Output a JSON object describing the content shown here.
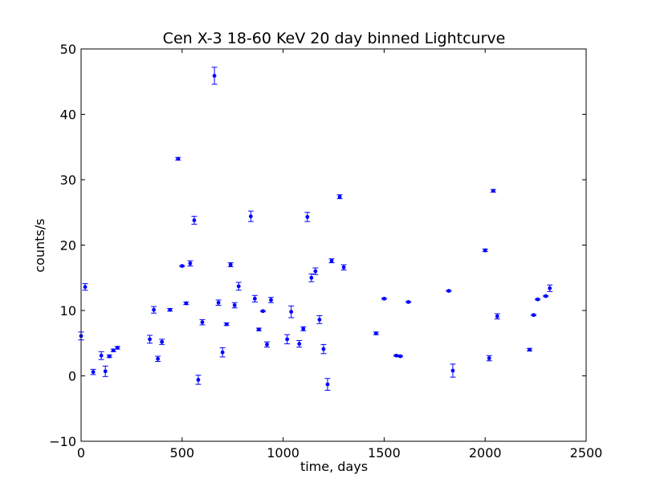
{
  "chart_data": {
    "type": "scatter",
    "title": "Cen X-3 18-60 KeV 20 day binned Lightcurve",
    "xlabel": "time, days",
    "ylabel": "counts/s",
    "xlim": [
      0,
      2500
    ],
    "ylim": [
      -10,
      50
    ],
    "xticks": [
      0,
      500,
      1000,
      1500,
      2000,
      2500
    ],
    "yticks": [
      -10,
      0,
      10,
      20,
      30,
      40,
      50
    ],
    "xtick_labels": [
      "0",
      "500",
      "1000",
      "1500",
      "2000",
      "2500"
    ],
    "ytick_labels": [
      "−10",
      "0",
      "10",
      "20",
      "30",
      "40",
      "50"
    ],
    "grid": false,
    "marker_color": "#0000ff",
    "points": [
      {
        "x": 0,
        "y": 6.1,
        "err": 0.6
      },
      {
        "x": 20,
        "y": 13.6,
        "err": 0.5
      },
      {
        "x": 60,
        "y": 0.6,
        "err": 0.4
      },
      {
        "x": 100,
        "y": 3.1,
        "err": 0.6
      },
      {
        "x": 120,
        "y": 0.7,
        "err": 0.8
      },
      {
        "x": 140,
        "y": 3.0,
        "err": 0.2
      },
      {
        "x": 160,
        "y": 3.9,
        "err": 0.2
      },
      {
        "x": 180,
        "y": 4.3,
        "err": 0.2
      },
      {
        "x": 340,
        "y": 5.6,
        "err": 0.6
      },
      {
        "x": 360,
        "y": 10.1,
        "err": 0.5
      },
      {
        "x": 380,
        "y": 2.6,
        "err": 0.4
      },
      {
        "x": 400,
        "y": 5.2,
        "err": 0.4
      },
      {
        "x": 440,
        "y": 10.1,
        "err": 0.2
      },
      {
        "x": 480,
        "y": 33.2,
        "err": 0.2
      },
      {
        "x": 500,
        "y": 16.8,
        "err": 0.1
      },
      {
        "x": 520,
        "y": 11.1,
        "err": 0.2
      },
      {
        "x": 540,
        "y": 17.2,
        "err": 0.4
      },
      {
        "x": 560,
        "y": 23.8,
        "err": 0.6
      },
      {
        "x": 580,
        "y": -0.6,
        "err": 0.7
      },
      {
        "x": 600,
        "y": 8.2,
        "err": 0.4
      },
      {
        "x": 660,
        "y": 45.9,
        "err": 1.3
      },
      {
        "x": 680,
        "y": 11.2,
        "err": 0.4
      },
      {
        "x": 700,
        "y": 3.6,
        "err": 0.7
      },
      {
        "x": 720,
        "y": 7.9,
        "err": 0.2
      },
      {
        "x": 740,
        "y": 17.0,
        "err": 0.3
      },
      {
        "x": 760,
        "y": 10.8,
        "err": 0.4
      },
      {
        "x": 780,
        "y": 13.7,
        "err": 0.6
      },
      {
        "x": 860,
        "y": 11.8,
        "err": 0.5
      },
      {
        "x": 840,
        "y": 24.4,
        "err": 0.8
      },
      {
        "x": 880,
        "y": 7.1,
        "err": 0.2
      },
      {
        "x": 900,
        "y": 9.9,
        "err": 0.1
      },
      {
        "x": 920,
        "y": 4.8,
        "err": 0.4
      },
      {
        "x": 940,
        "y": 11.6,
        "err": 0.4
      },
      {
        "x": 1020,
        "y": 5.6,
        "err": 0.7
      },
      {
        "x": 1040,
        "y": 9.8,
        "err": 0.9
      },
      {
        "x": 1080,
        "y": 4.9,
        "err": 0.5
      },
      {
        "x": 1100,
        "y": 7.2,
        "err": 0.3
      },
      {
        "x": 1120,
        "y": 24.3,
        "err": 0.7
      },
      {
        "x": 1140,
        "y": 15.0,
        "err": 0.6
      },
      {
        "x": 1160,
        "y": 16.0,
        "err": 0.5
      },
      {
        "x": 1180,
        "y": 8.6,
        "err": 0.6
      },
      {
        "x": 1200,
        "y": 4.1,
        "err": 0.7
      },
      {
        "x": 1220,
        "y": -1.3,
        "err": 0.9
      },
      {
        "x": 1240,
        "y": 17.6,
        "err": 0.3
      },
      {
        "x": 1280,
        "y": 27.4,
        "err": 0.3
      },
      {
        "x": 1300,
        "y": 16.6,
        "err": 0.4
      },
      {
        "x": 1460,
        "y": 6.5,
        "err": 0.2
      },
      {
        "x": 1500,
        "y": 11.8,
        "err": 0.1
      },
      {
        "x": 1560,
        "y": 3.1,
        "err": 0.1
      },
      {
        "x": 1580,
        "y": 3.0,
        "err": 0.1
      },
      {
        "x": 1620,
        "y": 11.3,
        "err": 0.1
      },
      {
        "x": 1820,
        "y": 13.0,
        "err": 0.1
      },
      {
        "x": 1840,
        "y": 0.8,
        "err": 1.0
      },
      {
        "x": 2000,
        "y": 19.2,
        "err": 0.2
      },
      {
        "x": 2020,
        "y": 2.7,
        "err": 0.4
      },
      {
        "x": 2040,
        "y": 28.3,
        "err": 0.2
      },
      {
        "x": 2060,
        "y": 9.1,
        "err": 0.4
      },
      {
        "x": 2220,
        "y": 4.0,
        "err": 0.2
      },
      {
        "x": 2240,
        "y": 9.3,
        "err": 0.1
      },
      {
        "x": 2260,
        "y": 11.7,
        "err": 0.1
      },
      {
        "x": 2300,
        "y": 12.2,
        "err": 0.1
      },
      {
        "x": 2320,
        "y": 13.4,
        "err": 0.5
      }
    ]
  }
}
